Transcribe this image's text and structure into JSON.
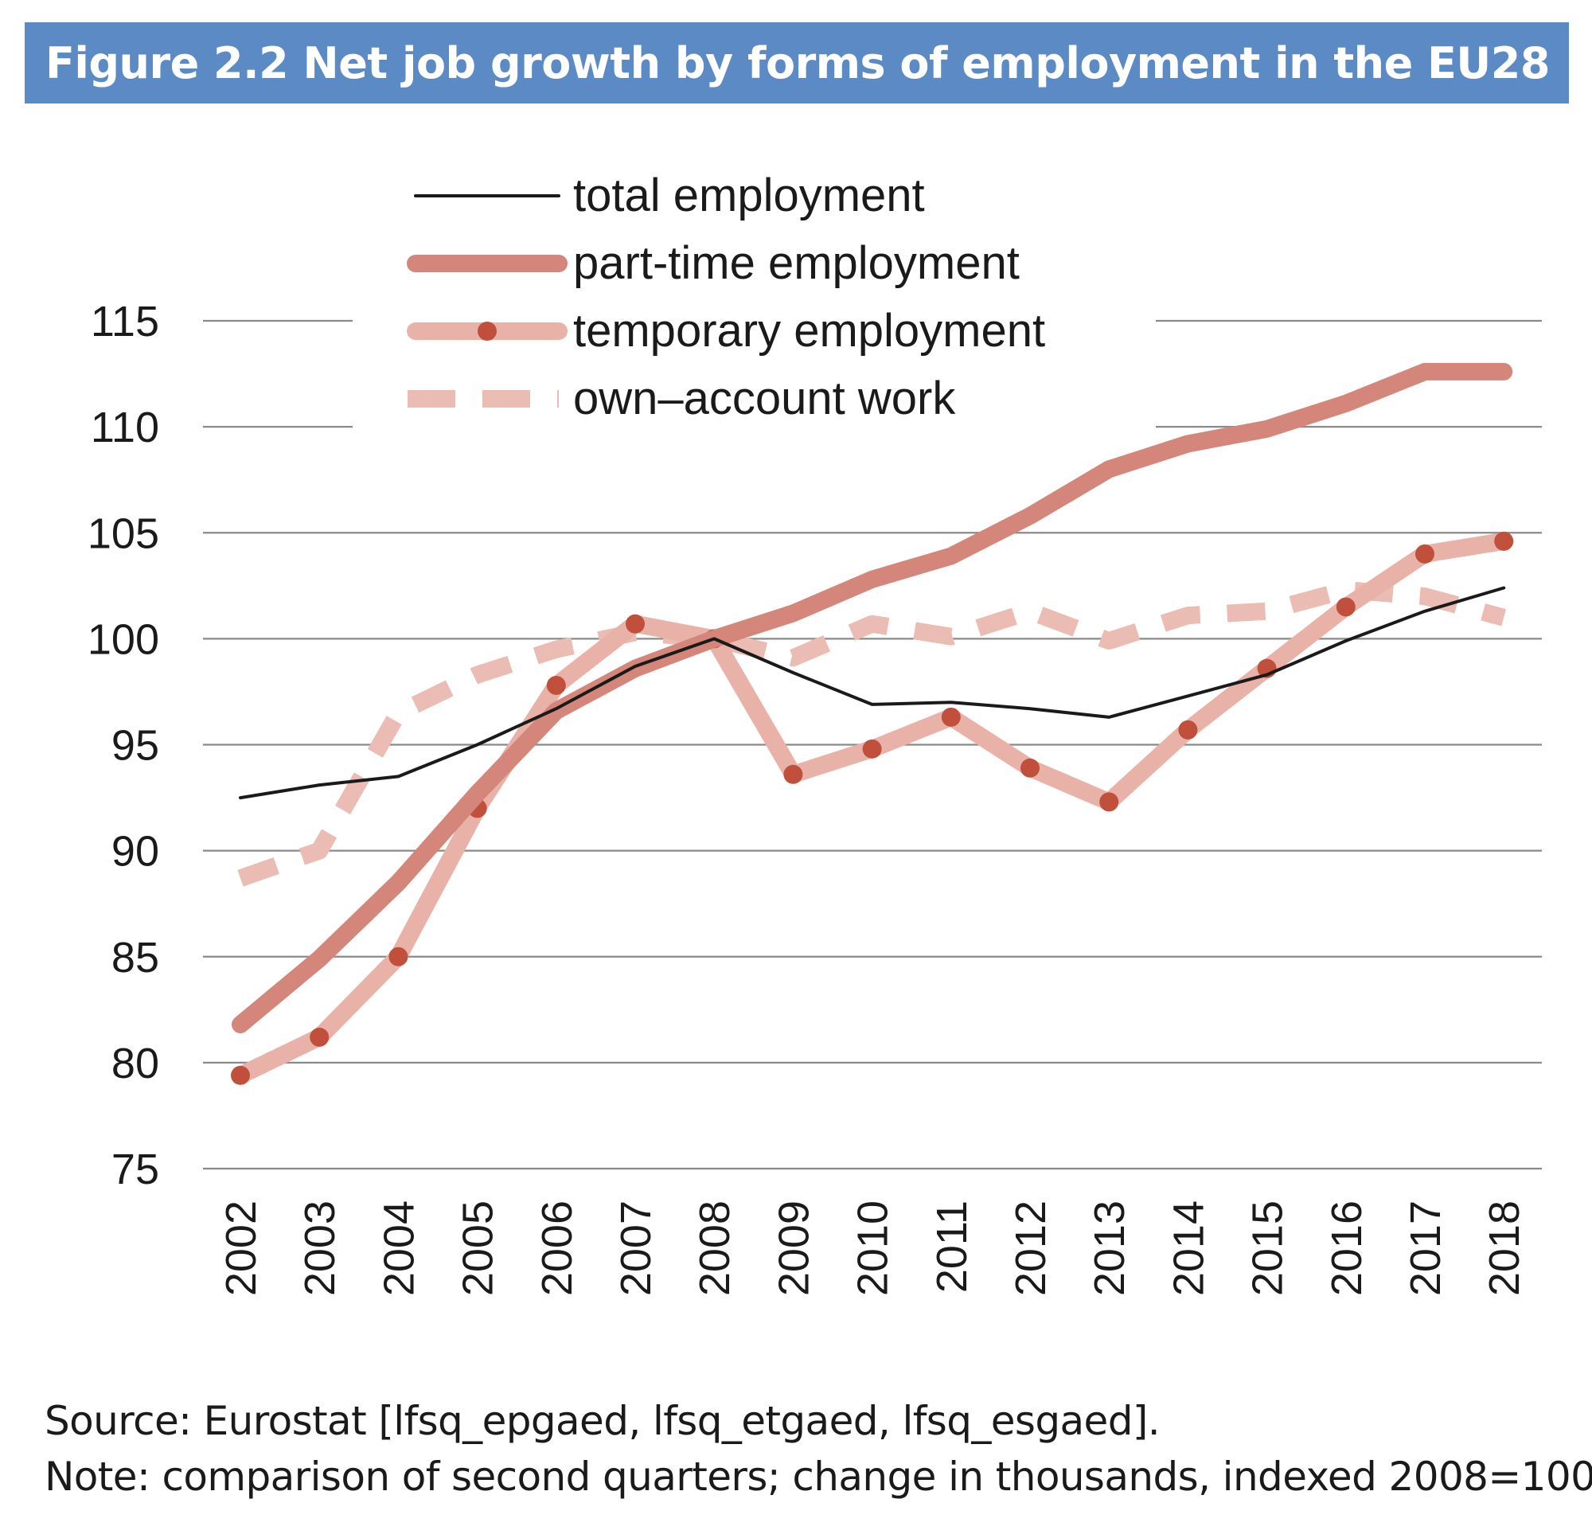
{
  "figure": {
    "title": "Figure 2.2 Net job growth by forms of employment in the EU28",
    "source": "Source: Eurostat [lfsq_epgaed, lfsq_etgaed, lfsq_esgaed].",
    "note": "Note: comparison of second quarters; change in thousands, indexed 2008=100."
  },
  "colors": {
    "title_bg": "#5b8ac5",
    "total": "#1a1a1a",
    "part_time": "#d4867a",
    "temporary": "#e8b2a8",
    "temporary_marker": "#c0503c",
    "own_account": "#ebbcb3",
    "grid": "#8a8a8a"
  },
  "chart_data": {
    "type": "line",
    "title": "Figure 2.2 Net job growth by forms of employment in the EU28",
    "xlabel": "",
    "ylabel": "",
    "x": [
      "2002",
      "2003",
      "2004",
      "2005",
      "2006",
      "2007",
      "2008",
      "2009",
      "2010",
      "2011",
      "2012",
      "2013",
      "2014",
      "2015",
      "2016",
      "2017",
      "2018"
    ],
    "ylim": [
      75,
      115
    ],
    "yticks": [
      75,
      80,
      85,
      90,
      95,
      100,
      105,
      110,
      115
    ],
    "grid": true,
    "legend_position": "top-center",
    "series": [
      {
        "name": "total employment",
        "style": "thin-solid",
        "values": [
          92.5,
          93.1,
          93.5,
          95.0,
          96.7,
          98.7,
          100.0,
          98.4,
          96.9,
          97.0,
          96.7,
          96.3,
          97.3,
          98.3,
          99.9,
          101.3,
          102.4
        ]
      },
      {
        "name": "part-time employment",
        "style": "thick-solid",
        "values": [
          81.8,
          84.9,
          88.5,
          92.7,
          96.6,
          98.6,
          100.0,
          101.2,
          102.8,
          103.9,
          105.8,
          108.0,
          109.2,
          109.9,
          111.1,
          112.6,
          112.6
        ]
      },
      {
        "name": "temporary employment",
        "style": "thick-markers",
        "values": [
          79.4,
          81.2,
          85.0,
          92.0,
          97.8,
          100.7,
          100.0,
          93.6,
          94.8,
          96.3,
          93.9,
          92.3,
          95.7,
          98.6,
          101.5,
          104.0,
          104.6
        ]
      },
      {
        "name": "own–account work",
        "style": "dashed",
        "values": [
          88.7,
          90.0,
          96.5,
          98.3,
          99.5,
          100.3,
          100.0,
          99.1,
          100.7,
          100.1,
          101.3,
          99.9,
          101.1,
          101.3,
          102.3,
          102.0,
          101.0
        ]
      }
    ]
  }
}
